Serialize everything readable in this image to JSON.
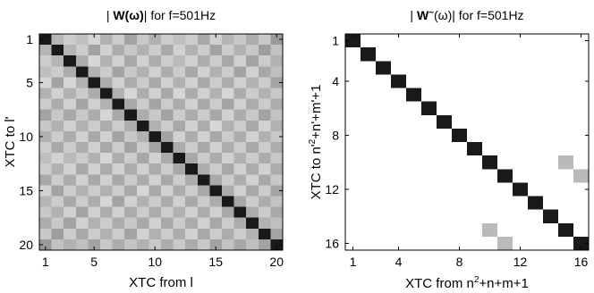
{
  "chart_data": [
    {
      "type": "heatmap",
      "title": {
        "pre": "| ",
        "bold": "W(ω)",
        "post": "| for f=501Hz"
      },
      "xlabel": "XTC from l",
      "ylabel": "XTC to l'",
      "size": 20,
      "xticks": [
        1,
        5,
        10,
        15,
        20
      ],
      "yticks": [
        1,
        5,
        10,
        15,
        20
      ],
      "colormap": "gray-reversed",
      "values": [
        [
          1.0,
          0.32,
          0.22,
          0.28,
          0.18,
          0.34,
          0.22,
          0.4,
          0.24,
          0.34,
          0.22,
          0.28,
          0.22,
          0.38,
          0.2,
          0.32,
          0.24,
          0.36,
          0.24,
          0.44
        ],
        [
          0.32,
          1.0,
          0.32,
          0.22,
          0.4,
          0.2,
          0.36,
          0.24,
          0.34,
          0.22,
          0.38,
          0.2,
          0.34,
          0.22,
          0.4,
          0.22,
          0.34,
          0.24,
          0.42,
          0.26
        ],
        [
          0.22,
          0.32,
          1.0,
          0.36,
          0.18,
          0.34,
          0.2,
          0.38,
          0.2,
          0.36,
          0.22,
          0.3,
          0.2,
          0.36,
          0.22,
          0.38,
          0.2,
          0.4,
          0.22,
          0.34
        ],
        [
          0.28,
          0.22,
          0.36,
          1.0,
          0.34,
          0.22,
          0.4,
          0.24,
          0.34,
          0.2,
          0.36,
          0.22,
          0.38,
          0.2,
          0.34,
          0.22,
          0.4,
          0.2,
          0.38,
          0.28
        ],
        [
          0.18,
          0.4,
          0.18,
          0.34,
          1.0,
          0.36,
          0.2,
          0.36,
          0.22,
          0.38,
          0.2,
          0.34,
          0.2,
          0.38,
          0.22,
          0.36,
          0.2,
          0.34,
          0.22,
          0.4
        ],
        [
          0.34,
          0.2,
          0.34,
          0.22,
          0.36,
          1.0,
          0.34,
          0.18,
          0.36,
          0.2,
          0.38,
          0.18,
          0.36,
          0.2,
          0.34,
          0.18,
          0.36,
          0.22,
          0.34,
          0.24
        ],
        [
          0.22,
          0.36,
          0.2,
          0.4,
          0.2,
          0.34,
          1.0,
          0.38,
          0.22,
          0.4,
          0.22,
          0.36,
          0.2,
          0.38,
          0.22,
          0.4,
          0.2,
          0.36,
          0.22,
          0.36
        ],
        [
          0.4,
          0.24,
          0.38,
          0.24,
          0.36,
          0.18,
          0.38,
          1.0,
          0.36,
          0.24,
          0.4,
          0.22,
          0.36,
          0.22,
          0.38,
          0.2,
          0.36,
          0.24,
          0.4,
          0.26
        ],
        [
          0.24,
          0.34,
          0.2,
          0.34,
          0.22,
          0.36,
          0.22,
          0.36,
          1.0,
          0.34,
          0.22,
          0.38,
          0.2,
          0.36,
          0.18,
          0.34,
          0.22,
          0.38,
          0.2,
          0.34
        ],
        [
          0.34,
          0.22,
          0.36,
          0.2,
          0.38,
          0.2,
          0.4,
          0.24,
          0.34,
          1.0,
          0.4,
          0.2,
          0.36,
          0.2,
          0.38,
          0.22,
          0.36,
          0.2,
          0.34,
          0.24
        ],
        [
          0.22,
          0.38,
          0.22,
          0.36,
          0.2,
          0.38,
          0.22,
          0.4,
          0.22,
          0.4,
          1.0,
          0.36,
          0.22,
          0.38,
          0.2,
          0.36,
          0.22,
          0.38,
          0.22,
          0.36
        ],
        [
          0.28,
          0.2,
          0.3,
          0.22,
          0.34,
          0.18,
          0.36,
          0.22,
          0.38,
          0.2,
          0.36,
          1.0,
          0.38,
          0.22,
          0.36,
          0.2,
          0.34,
          0.22,
          0.36,
          0.24
        ],
        [
          0.22,
          0.34,
          0.2,
          0.38,
          0.2,
          0.36,
          0.2,
          0.36,
          0.2,
          0.36,
          0.22,
          0.38,
          1.0,
          0.36,
          0.22,
          0.38,
          0.2,
          0.36,
          0.2,
          0.36
        ],
        [
          0.38,
          0.22,
          0.36,
          0.2,
          0.38,
          0.2,
          0.38,
          0.22,
          0.36,
          0.2,
          0.38,
          0.22,
          0.36,
          1.0,
          0.38,
          0.22,
          0.36,
          0.2,
          0.38,
          0.24
        ],
        [
          0.2,
          0.4,
          0.22,
          0.34,
          0.22,
          0.34,
          0.22,
          0.38,
          0.18,
          0.38,
          0.2,
          0.36,
          0.22,
          0.38,
          1.0,
          0.36,
          0.2,
          0.38,
          0.22,
          0.4
        ],
        [
          0.32,
          0.22,
          0.38,
          0.22,
          0.36,
          0.18,
          0.4,
          0.2,
          0.34,
          0.22,
          0.36,
          0.2,
          0.38,
          0.22,
          0.36,
          1.0,
          0.38,
          0.22,
          0.36,
          0.26
        ],
        [
          0.24,
          0.34,
          0.2,
          0.4,
          0.2,
          0.36,
          0.2,
          0.36,
          0.22,
          0.36,
          0.22,
          0.34,
          0.2,
          0.36,
          0.2,
          0.38,
          1.0,
          0.36,
          0.22,
          0.38
        ],
        [
          0.36,
          0.24,
          0.4,
          0.2,
          0.34,
          0.22,
          0.36,
          0.24,
          0.38,
          0.2,
          0.38,
          0.22,
          0.36,
          0.2,
          0.38,
          0.22,
          0.36,
          1.0,
          0.34,
          0.28
        ],
        [
          0.24,
          0.42,
          0.22,
          0.38,
          0.22,
          0.34,
          0.22,
          0.4,
          0.2,
          0.34,
          0.22,
          0.36,
          0.2,
          0.38,
          0.22,
          0.36,
          0.22,
          0.34,
          1.0,
          0.4
        ],
        [
          0.44,
          0.26,
          0.34,
          0.28,
          0.4,
          0.24,
          0.36,
          0.26,
          0.34,
          0.24,
          0.36,
          0.24,
          0.36,
          0.24,
          0.4,
          0.26,
          0.38,
          0.28,
          0.4,
          1.0
        ]
      ]
    },
    {
      "type": "heatmap",
      "title": {
        "pre": "| ",
        "bold": "W",
        "sup": "~",
        "post": "(ω)| for f=501Hz"
      },
      "xlabel": {
        "pre": "XTC from n",
        "sup": "2",
        "post": "+n+m+1"
      },
      "ylabel": {
        "pre": "XTC to n'",
        "sup": "2",
        "post": "+n'+m'+1"
      },
      "size": 16,
      "xticks": [
        1,
        4,
        8,
        12,
        16
      ],
      "yticks": [
        1,
        4,
        8,
        12,
        16
      ],
      "colormap": "gray-reversed",
      "diagonal_value": 1.0,
      "offdiagonal": [
        {
          "row": 10,
          "col": 15,
          "value": 0.3
        },
        {
          "row": 11,
          "col": 16,
          "value": 0.3
        },
        {
          "row": 15,
          "col": 10,
          "value": 0.3
        },
        {
          "row": 16,
          "col": 11,
          "value": 0.3
        }
      ]
    }
  ]
}
